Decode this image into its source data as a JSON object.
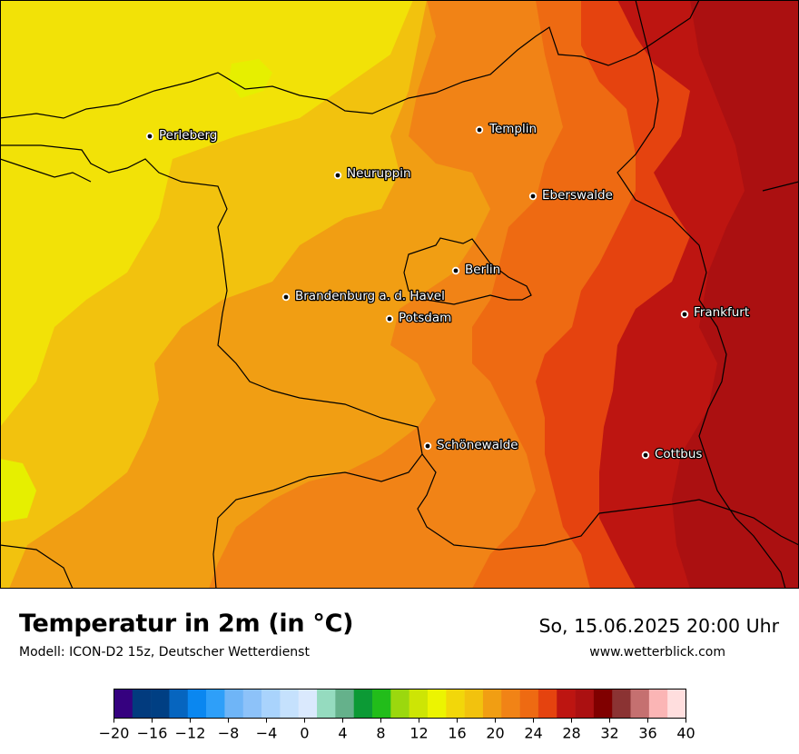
{
  "map": {
    "background_colors": {
      "c16": "#f2e207",
      "c18": "#f2c20e",
      "c20": "#f19e13",
      "c22": "#f18316",
      "c24": "#ee6a12",
      "c26": "#e5430f",
      "c28": "#bd1511",
      "c30": "#ab1011",
      "c14": "#e6ef00"
    },
    "cities": [
      {
        "name": "Perleberg"
      },
      {
        "name": "Templin"
      },
      {
        "name": "Neuruppin"
      },
      {
        "name": "Eberswalde"
      },
      {
        "name": "Berlin"
      },
      {
        "name": "Brandenburg a. d. Havel"
      },
      {
        "name": "Potsdam"
      },
      {
        "name": "Frankfurt"
      },
      {
        "name": "Schönewalde"
      },
      {
        "name": "Cottbus"
      }
    ]
  },
  "header": {
    "title": "Temperatur in 2m (in °C)",
    "subtitle": "Modell: ICON-D2 15z, Deutscher Wetterdienst",
    "datetime": "So, 15.06.2025 20:00 Uhr",
    "website": "www.wetterblick.com"
  },
  "colorbar": {
    "unit": "°C",
    "min": -20,
    "max": 40,
    "step": 2,
    "colors": [
      "#35017f",
      "#023b7e",
      "#003f83",
      "#0665bf",
      "#0a87f0",
      "#2e9ff9",
      "#6fb5f7",
      "#8dc2f9",
      "#a9d3fc",
      "#c5e1fd",
      "#dae9fd",
      "#95dbbf",
      "#65b18b",
      "#0c9a35",
      "#22bd1a",
      "#9bd80e",
      "#cde505",
      "#ecf401",
      "#f2d70a",
      "#f2c20e",
      "#f19e13",
      "#f18316",
      "#ee6a12",
      "#e5430f",
      "#bd1511",
      "#ab1011",
      "#800000",
      "#8b3333",
      "#c57070",
      "#fbb5b5",
      "#ffdede"
    ],
    "tick_labels": [
      "−20",
      "−16",
      "−12",
      "−8",
      "−4",
      "0",
      "4",
      "8",
      "12",
      "16",
      "20",
      "24",
      "28",
      "32",
      "36",
      "40"
    ]
  }
}
